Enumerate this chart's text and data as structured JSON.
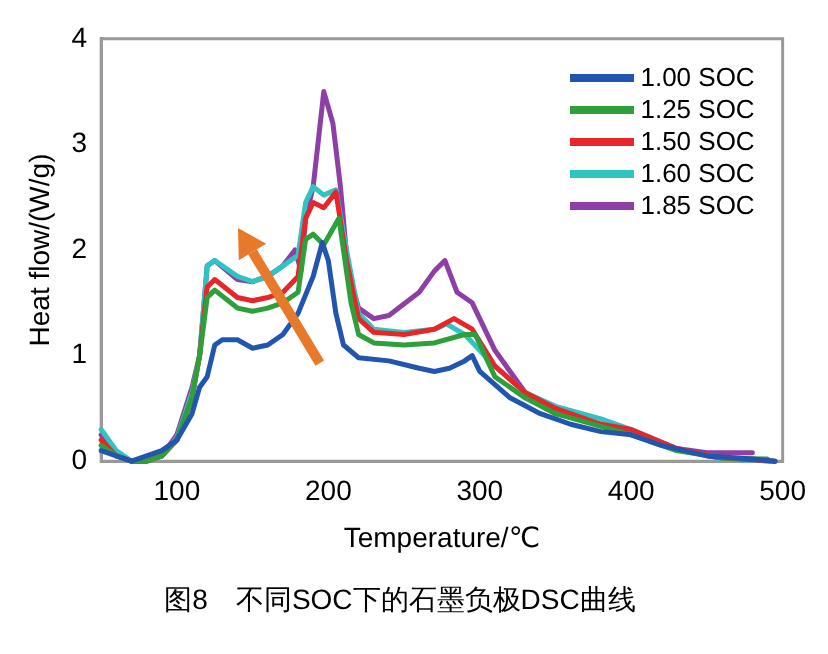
{
  "chart_data": {
    "type": "line",
    "title": "图8　不同SOC下的石墨负极DSC曲线",
    "xlabel": "Temperature/℃",
    "ylabel": "Heat flow/(W/g)",
    "xlim": [
      50,
      500
    ],
    "xticks": [
      100,
      200,
      300,
      400,
      500
    ],
    "ylim": [
      0,
      4
    ],
    "yticks": [
      0,
      1,
      2,
      3,
      4
    ],
    "grid": false,
    "legend": "top right",
    "marker": "none",
    "line_style": "solid",
    "series": [
      {
        "name": "1.00 SOC",
        "color": "#2255b0",
        "x": [
          50,
          60,
          70,
          80,
          90,
          100,
          110,
          115,
          120,
          125,
          130,
          140,
          150,
          160,
          170,
          180,
          190,
          196,
          200,
          205,
          210,
          220,
          240,
          260,
          270,
          280,
          290,
          295,
          300,
          320,
          340,
          360,
          380,
          400,
          420,
          450,
          480,
          495
        ],
        "values": [
          0.1,
          0.05,
          0.0,
          0.05,
          0.1,
          0.2,
          0.45,
          0.7,
          0.8,
          1.1,
          1.15,
          1.15,
          1.07,
          1.1,
          1.2,
          1.4,
          1.75,
          2.07,
          1.9,
          1.4,
          1.1,
          0.98,
          0.95,
          0.88,
          0.85,
          0.88,
          0.95,
          1.0,
          0.85,
          0.6,
          0.45,
          0.35,
          0.28,
          0.25,
          0.15,
          0.05,
          0.02,
          0.0
        ]
      },
      {
        "name": "1.25 SOC",
        "color": "#2ea03a",
        "x": [
          50,
          60,
          70,
          80,
          90,
          100,
          110,
          115,
          120,
          125,
          140,
          150,
          160,
          170,
          180,
          185,
          190,
          197,
          207,
          215,
          220,
          230,
          250,
          270,
          290,
          297,
          310,
          330,
          350,
          380,
          400,
          430,
          460,
          490
        ],
        "values": [
          0.15,
          0.05,
          0.0,
          0.0,
          0.05,
          0.2,
          0.6,
          1.0,
          1.55,
          1.62,
          1.45,
          1.42,
          1.45,
          1.5,
          1.6,
          2.1,
          2.15,
          2.05,
          2.3,
          1.5,
          1.2,
          1.12,
          1.1,
          1.12,
          1.2,
          1.2,
          0.8,
          0.6,
          0.45,
          0.33,
          0.25,
          0.1,
          0.03,
          0.02
        ]
      },
      {
        "name": "1.50 SOC",
        "color": "#e8262a",
        "x": [
          50,
          60,
          70,
          80,
          90,
          100,
          110,
          115,
          120,
          125,
          140,
          150,
          160,
          170,
          180,
          185,
          190,
          197,
          205,
          212,
          220,
          230,
          250,
          270,
          283,
          295,
          310,
          330,
          350,
          380,
          400,
          430,
          460,
          495
        ],
        "values": [
          0.2,
          0.05,
          0.0,
          0.0,
          0.05,
          0.2,
          0.6,
          1.0,
          1.65,
          1.72,
          1.55,
          1.52,
          1.55,
          1.6,
          1.75,
          2.3,
          2.45,
          2.4,
          2.55,
          1.9,
          1.35,
          1.22,
          1.2,
          1.25,
          1.35,
          1.25,
          0.9,
          0.65,
          0.5,
          0.35,
          0.3,
          0.12,
          0.03,
          0.0
        ]
      },
      {
        "name": "1.60 SOC",
        "color": "#2ec4c4",
        "x": [
          50,
          60,
          70,
          80,
          90,
          100,
          110,
          115,
          120,
          125,
          140,
          150,
          160,
          170,
          180,
          185,
          190,
          197,
          205,
          212,
          220,
          230,
          250,
          270,
          278,
          290,
          310,
          330,
          350,
          380,
          400,
          430,
          460,
          495
        ],
        "values": [
          0.3,
          0.1,
          0.0,
          0.0,
          0.05,
          0.22,
          0.65,
          1.0,
          1.85,
          1.9,
          1.75,
          1.7,
          1.75,
          1.85,
          1.95,
          2.45,
          2.6,
          2.52,
          2.57,
          2.0,
          1.4,
          1.25,
          1.22,
          1.25,
          1.3,
          1.2,
          0.9,
          0.65,
          0.52,
          0.4,
          0.3,
          0.12,
          0.02,
          0.0
        ]
      },
      {
        "name": "1.85 SOC",
        "color": "#8e3fa6",
        "x": [
          50,
          60,
          70,
          80,
          90,
          100,
          110,
          115,
          120,
          125,
          140,
          150,
          160,
          170,
          178,
          182,
          185,
          190,
          197,
          203,
          208,
          213,
          220,
          230,
          240,
          260,
          270,
          277,
          285,
          295,
          310,
          330,
          350,
          380,
          400,
          430,
          450,
          470,
          480
        ],
        "values": [
          0.25,
          0.08,
          0.0,
          0.0,
          0.05,
          0.25,
          0.7,
          1.0,
          1.85,
          1.9,
          1.72,
          1.7,
          1.75,
          1.85,
          2.0,
          1.8,
          2.3,
          2.6,
          3.5,
          3.2,
          2.6,
          1.8,
          1.45,
          1.35,
          1.38,
          1.6,
          1.8,
          1.9,
          1.6,
          1.5,
          1.05,
          0.65,
          0.45,
          0.35,
          0.28,
          0.12,
          0.08,
          0.08,
          0.08
        ]
      }
    ]
  }
}
